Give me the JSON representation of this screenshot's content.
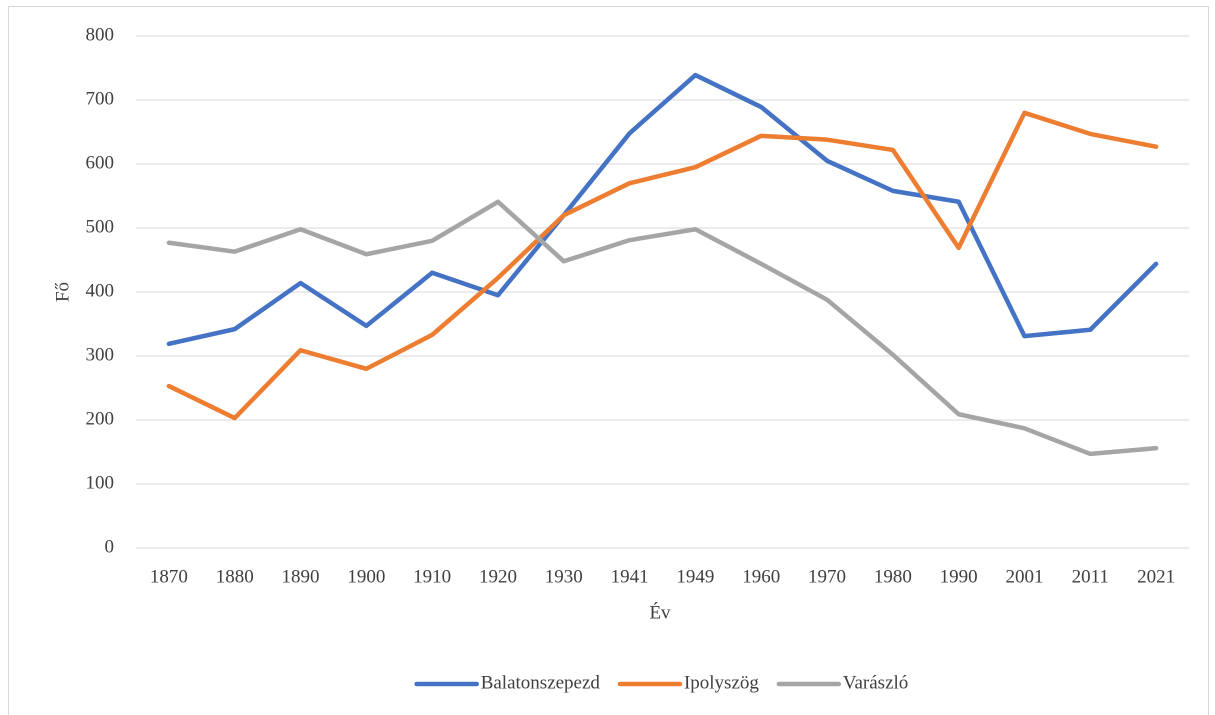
{
  "chart_data": {
    "type": "line",
    "x_label": "Év",
    "y_label": "Fő",
    "categories": [
      "1870",
      "1880",
      "1890",
      "1900",
      "1910",
      "1920",
      "1930",
      "1941",
      "1949",
      "1960",
      "1970",
      "1980",
      "1990",
      "2001",
      "2011",
      "2021"
    ],
    "series": [
      {
        "name": "Balatonszepezd",
        "color": "#4472c4",
        "values": [
          319,
          342,
          414,
          347,
          430,
          395,
          520,
          648,
          739,
          689,
          605,
          558,
          541,
          331,
          341,
          444
        ]
      },
      {
        "name": "Ipolyszög",
        "color": "#ed7d31",
        "values": [
          253,
          203,
          309,
          280,
          333,
          422,
          520,
          570,
          595,
          644,
          638,
          622,
          469,
          680,
          647,
          627
        ]
      },
      {
        "name": "Varászló",
        "color": "#a5a5a5",
        "values": [
          477,
          463,
          498,
          459,
          480,
          541,
          448,
          481,
          498,
          444,
          388,
          302,
          209,
          187,
          147,
          156
        ]
      }
    ],
    "ylim": [
      0,
      800
    ],
    "yticks": [
      0,
      100,
      200,
      300,
      400,
      500,
      600,
      700,
      800
    ],
    "grid": true,
    "legend": "bottom"
  }
}
